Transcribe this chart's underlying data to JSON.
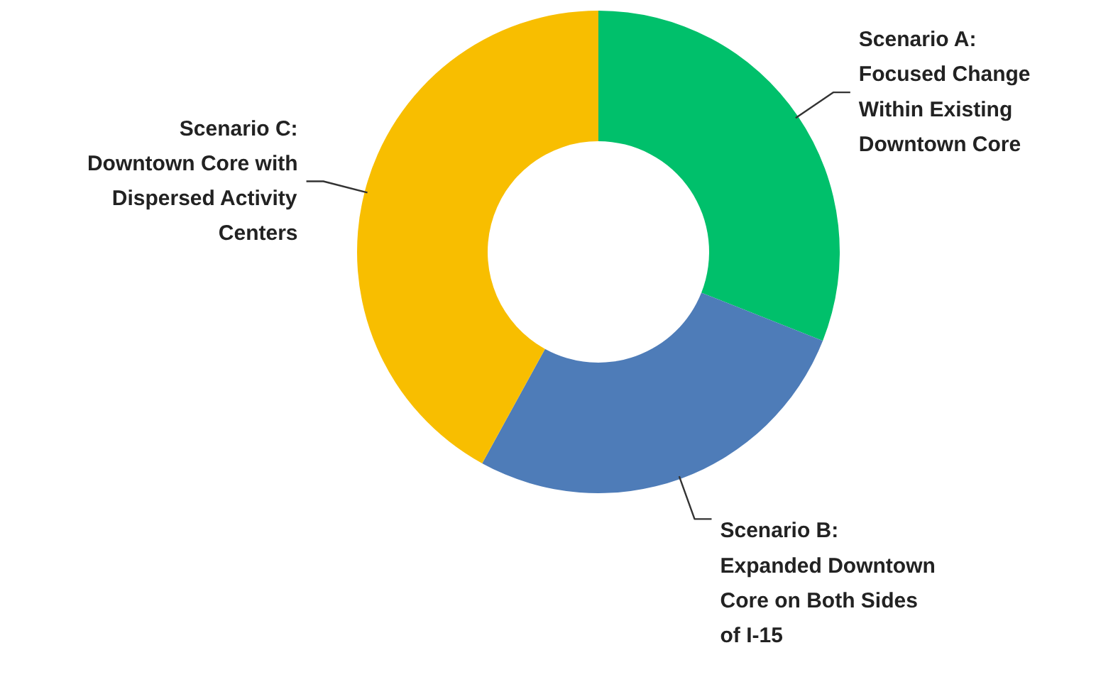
{
  "chart_data": {
    "type": "donut",
    "categories": [
      "Scenario A:\nFocused Change\nWithin Existing\nDowntown Core",
      "Scenario B:\nExpanded Downtown\nCore on Both Sides\nof I-15",
      "Scenario C:\nDowntown Core with\nDispersed Activity\nCenters"
    ],
    "values": [
      31,
      27,
      42
    ],
    "colors": [
      "#00c06b",
      "#4e7cb8",
      "#f8be00"
    ]
  }
}
